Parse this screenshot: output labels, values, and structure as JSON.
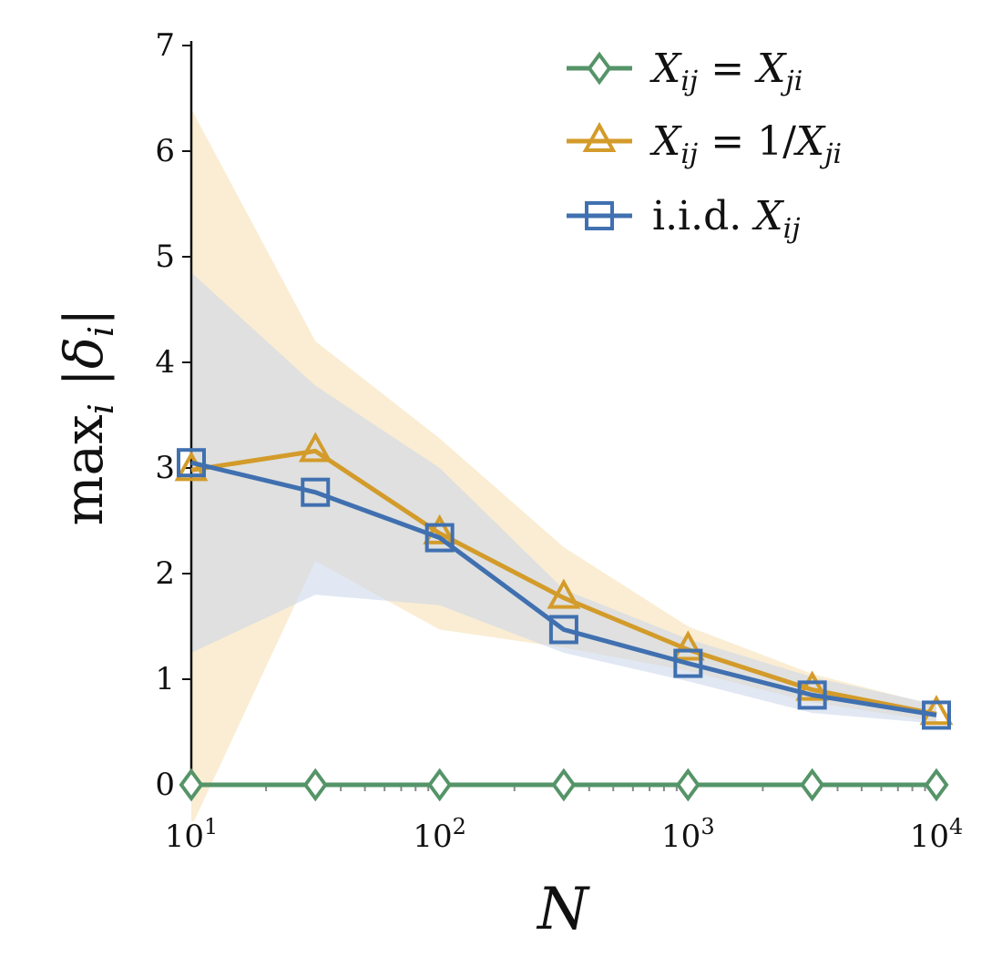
{
  "chart_data": {
    "type": "line",
    "x": [
      10,
      31.6,
      100,
      316,
      1000,
      3162,
      10000
    ],
    "xscale": "log",
    "xlim": [
      10,
      10000
    ],
    "ylim": [
      0,
      7
    ],
    "yticks": [
      0,
      1,
      2,
      3,
      4,
      5,
      6,
      7
    ],
    "xticks": [
      {
        "value": 10,
        "base": "10",
        "exp": "1"
      },
      {
        "value": 100,
        "base": "10",
        "exp": "2"
      },
      {
        "value": 1000,
        "base": "10",
        "exp": "3"
      },
      {
        "value": 10000,
        "base": "10",
        "exp": "4"
      }
    ],
    "xlabel": "N",
    "ylabel": {
      "op": "max",
      "sub": "i",
      "body": "|δ",
      "body_sub": "i",
      "close": "|"
    },
    "legend_position": "top-right",
    "grid": false,
    "series": [
      {
        "name": "X_ij = X_ji",
        "label": {
          "pre": "",
          "lhs": "X",
          "lhs_sub": "ij",
          "mid": " = ",
          "rhs": "X",
          "rhs_sub": "ji"
        },
        "color": "#559468",
        "marker": "diamond",
        "values": [
          0,
          0,
          0,
          0,
          0,
          0,
          0
        ]
      },
      {
        "name": "X_ij = 1/X_ji",
        "label": {
          "pre": "",
          "lhs": "X",
          "lhs_sub": "ij",
          "mid": " = 1/",
          "rhs": "X",
          "rhs_sub": "ji"
        },
        "color": "#d39b2a",
        "band_color": "#f8e3bb",
        "marker": "triangle",
        "values": [
          2.98,
          3.16,
          2.38,
          1.77,
          1.28,
          0.9,
          0.67
        ],
        "band_upper": [
          6.4,
          4.2,
          3.28,
          2.25,
          1.5,
          1.05,
          0.75
        ],
        "band_lower": [
          -0.4,
          2.12,
          1.47,
          1.3,
          1.08,
          0.78,
          0.6
        ]
      },
      {
        "name": "i.i.d. X_ij",
        "label": {
          "pre": "i.i.d. ",
          "lhs": "X",
          "lhs_sub": "ij",
          "mid": "",
          "rhs": "",
          "rhs_sub": ""
        },
        "color": "#4070b0",
        "band_color": "#c8d6ea",
        "marker": "square",
        "values": [
          3.05,
          2.77,
          2.34,
          1.47,
          1.15,
          0.85,
          0.66
        ],
        "band_upper": [
          4.85,
          3.78,
          3.0,
          1.85,
          1.38,
          1.02,
          0.76
        ],
        "band_lower": [
          1.25,
          1.8,
          1.7,
          1.25,
          0.98,
          0.68,
          0.58
        ]
      }
    ]
  }
}
